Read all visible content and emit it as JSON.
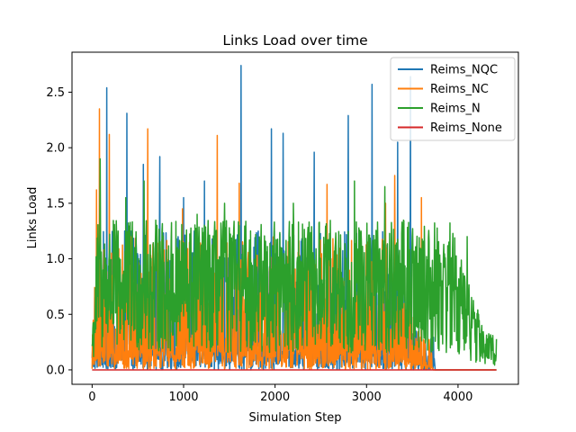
{
  "chart_data": {
    "type": "line",
    "title": "Links Load over time",
    "xlabel": "Simulation Step",
    "ylabel": "Links Load",
    "xlim": [
      -220,
      4660
    ],
    "ylim": [
      -0.13,
      2.86
    ],
    "x_ticks": [
      0,
      1000,
      2000,
      3000,
      4000
    ],
    "x_tick_labels": [
      "0",
      "1000",
      "2000",
      "3000",
      "4000"
    ],
    "y_ticks": [
      0.0,
      0.5,
      1.0,
      1.5,
      2.0,
      2.5
    ],
    "y_tick_labels": [
      "0.0",
      "0.5",
      "1.0",
      "1.5",
      "2.0",
      "2.5"
    ],
    "grid": false,
    "legend_position": "top-right",
    "series": [
      {
        "name": "Reims_NQC",
        "color": "#1f77b4",
        "x_end": 3740,
        "base_low": 0.0,
        "base_high": 1.25,
        "spikes": [
          [
            160,
            2.54
          ],
          [
            380,
            2.31
          ],
          [
            560,
            1.85
          ],
          [
            740,
            1.92
          ],
          [
            1000,
            1.55
          ],
          [
            1230,
            1.7
          ],
          [
            1630,
            2.74
          ],
          [
            1960,
            2.17
          ],
          [
            2090,
            2.13
          ],
          [
            2430,
            1.96
          ],
          [
            2800,
            2.29
          ],
          [
            3060,
            2.57
          ],
          [
            3340,
            2.05
          ],
          [
            3480,
            2.64
          ]
        ]
      },
      {
        "name": "Reims_NC",
        "color": "#ff7f0e",
        "x_end": 3720,
        "base_low": 0.0,
        "base_high": 1.2,
        "spikes": [
          [
            50,
            1.62
          ],
          [
            80,
            2.35
          ],
          [
            190,
            2.12
          ],
          [
            610,
            2.17
          ],
          [
            990,
            1.45
          ],
          [
            1370,
            2.11
          ],
          [
            1610,
            1.68
          ],
          [
            2570,
            1.67
          ],
          [
            3210,
            1.5
          ],
          [
            3310,
            1.75
          ],
          [
            3600,
            1.55
          ]
        ]
      },
      {
        "name": "Reims_N",
        "color": "#2ca02c",
        "x_end": 4420,
        "base_low": 0.15,
        "base_high": 1.35,
        "spikes": [
          [
            90,
            1.9
          ],
          [
            370,
            1.55
          ],
          [
            570,
            1.7
          ],
          [
            1150,
            1.4
          ],
          [
            1450,
            1.5
          ],
          [
            2200,
            1.5
          ],
          [
            2870,
            1.7
          ],
          [
            3200,
            1.65
          ],
          [
            3900,
            1.15
          ],
          [
            4100,
            1.2
          ]
        ]
      },
      {
        "name": "Reims_None",
        "color": "#d62728",
        "x_end": 4420,
        "base_low": 0.0,
        "base_high": 0.0,
        "spikes": []
      }
    ]
  }
}
